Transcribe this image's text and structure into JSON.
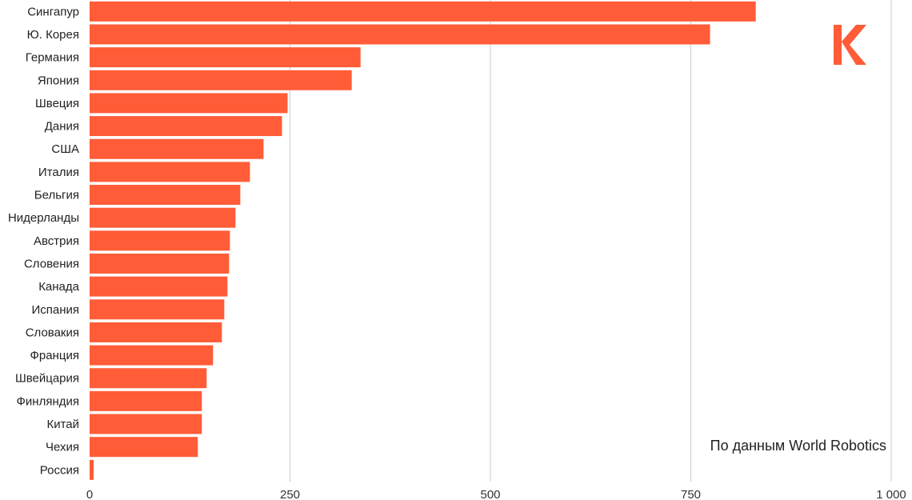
{
  "chart_data": {
    "type": "bar",
    "orientation": "horizontal",
    "title": "",
    "xlabel": "",
    "ylabel": "",
    "xlim": [
      0,
      1000
    ],
    "ticks": [
      0,
      250,
      500,
      750,
      1000
    ],
    "tick_labels": [
      "0",
      "250",
      "500",
      "750",
      "1 000"
    ],
    "grid": true,
    "bar_color": "#FF5C37",
    "categories": [
      "Сингапур",
      "Ю. Корея",
      "Германия",
      "Япония",
      "Швеция",
      "Дания",
      "США",
      "Италия",
      "Бельгия",
      "Нидерланды",
      "Австрия",
      "Словения",
      "Канада",
      "Испания",
      "Словакия",
      "Франция",
      "Швейцария",
      "Финляндия",
      "Китай",
      "Чехия",
      "Россия"
    ],
    "values": [
      831,
      774,
      338,
      327,
      247,
      240,
      217,
      200,
      188,
      182,
      175,
      174,
      172,
      168,
      165,
      154,
      146,
      140,
      140,
      135,
      5
    ],
    "annotation": "По данным World Robotics"
  },
  "logo": {
    "color": "#FF5C37",
    "icon": "k-logo-icon"
  }
}
